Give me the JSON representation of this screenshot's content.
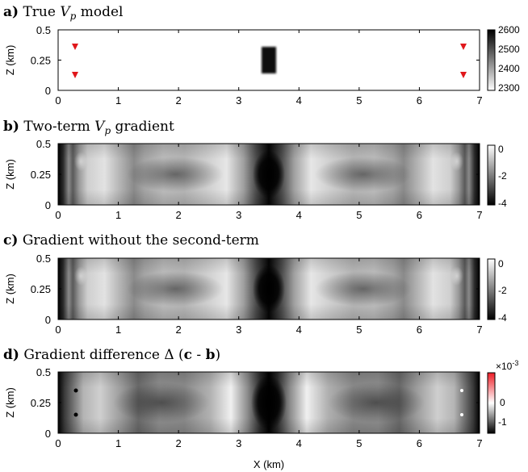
{
  "figure": {
    "xlabel": "X (km)",
    "xticks": [
      "0",
      "1",
      "2",
      "3",
      "4",
      "5",
      "6",
      "7"
    ],
    "ylabel": "Z (km)",
    "yticks": [
      "0.5",
      "0.25",
      "0"
    ]
  },
  "panels": [
    {
      "letter": "a)",
      "title_text": "True ",
      "title_var": "V",
      "title_sub": "p",
      "title_rest": " model",
      "colorbar": {
        "ticks": [
          "2600",
          "2500",
          "2400",
          "2300"
        ],
        "colormap": "white-to-black",
        "range": [
          2300,
          2600
        ]
      },
      "image": {
        "type": "velocity-model",
        "background_value": 2300,
        "anomaly": {
          "x_range_km": [
            3.4,
            3.6
          ],
          "z_range_km": [
            0.15,
            0.35
          ],
          "value": 2600
        },
        "markers": {
          "shape": "triangle-down",
          "color": "#e0171b",
          "positions_km": [
            [
              0.27,
              0.36
            ],
            [
              0.27,
              0.12
            ],
            [
              6.78,
              0.36
            ],
            [
              6.78,
              0.12
            ]
          ]
        }
      }
    },
    {
      "letter": "b)",
      "title_text": "Two-term ",
      "title_var": "V",
      "title_sub": "p",
      "title_rest": " gradient",
      "colorbar": {
        "ticks": [
          "0",
          "-2",
          "-4"
        ],
        "colormap": "white-to-black",
        "range": [
          -4,
          0
        ]
      },
      "image": {
        "type": "gradient"
      }
    },
    {
      "letter": "c)",
      "title_text": "Gradient without the second-term",
      "title_var": "",
      "title_sub": "",
      "title_rest": "",
      "colorbar": {
        "ticks": [
          "0",
          "-2",
          "-4"
        ],
        "colormap": "white-to-black",
        "range": [
          -4,
          0
        ]
      },
      "image": {
        "type": "gradient"
      }
    },
    {
      "letter": "d)",
      "title_text": "Gradient difference Δ (",
      "title_bold_1": "c",
      "title_mid": " - ",
      "title_bold_2": "b",
      "title_end": ")",
      "colorbar": {
        "ticks": [
          "0",
          "-1"
        ],
        "exponent": "×10",
        "exponent_power": "-3",
        "colormap": "black-white-red",
        "range": [
          -1.5,
          1.5
        ]
      },
      "image": {
        "type": "difference"
      }
    }
  ],
  "colors": {
    "marker_red": "#e0171b",
    "positive_red": "#ee1c25"
  }
}
